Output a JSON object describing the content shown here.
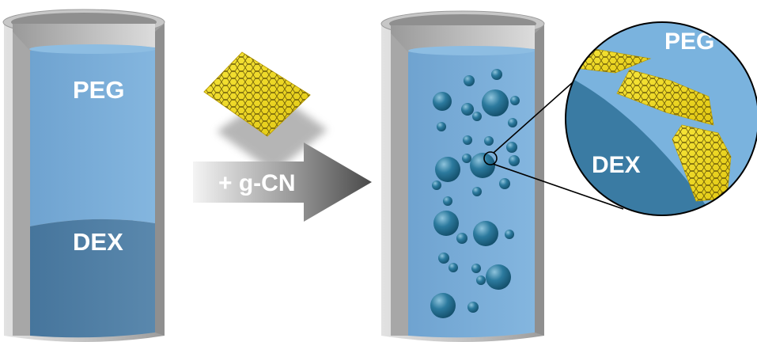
{
  "left_vial": {
    "top_phase_label": "PEG",
    "bottom_phase_label": "DEX"
  },
  "arrow": {
    "label": "+ g-CN"
  },
  "zoom": {
    "top_phase_label": "PEG",
    "bottom_phase_label": "DEX"
  },
  "colors": {
    "peg_phase": "#76aad6",
    "dex_phase": "#4f7ea5",
    "sheet_yellow": "#f2dc22",
    "glass": "#b9b9b9",
    "droplet": "#1f6888",
    "arrow_dark": "#555555"
  },
  "icons": [
    "g-CN-sheet-icon",
    "droplet-icon",
    "magnifier-circle-icon"
  ]
}
